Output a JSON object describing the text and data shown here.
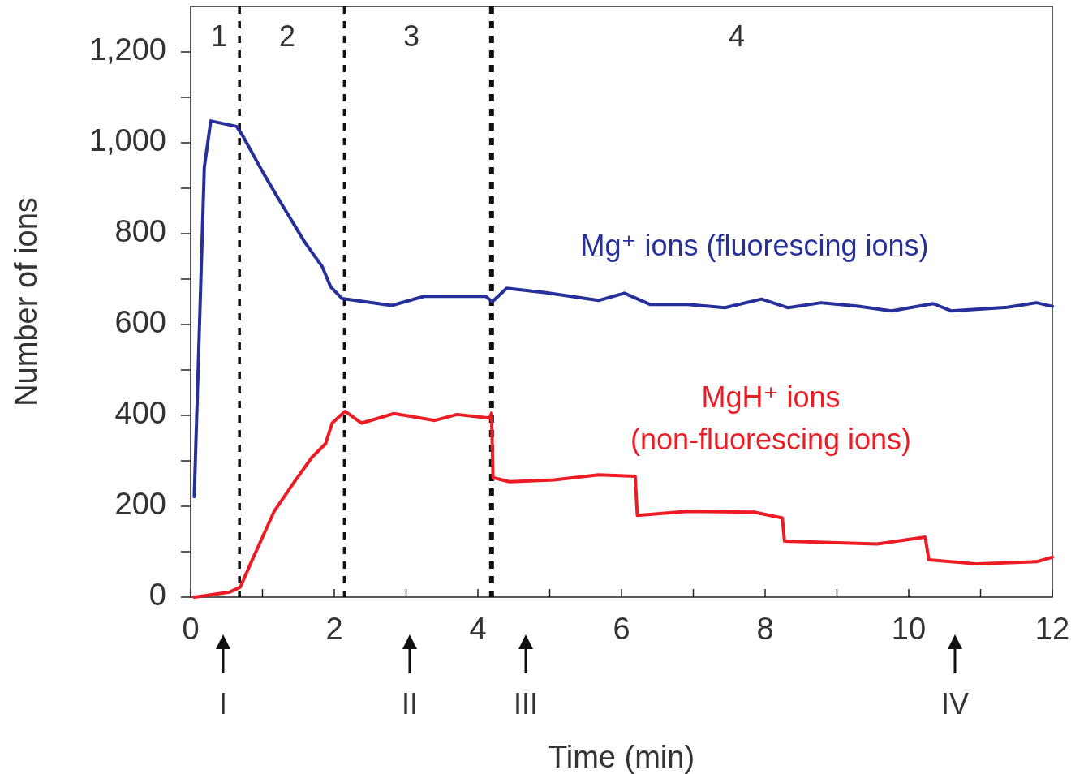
{
  "chart_data": {
    "type": "line",
    "xlabel": "Time (min)",
    "ylabel": "Number of ions",
    "xlim": [
      0,
      12
    ],
    "ylim": [
      0,
      1300
    ],
    "xticks": [
      0,
      {
        "value": 1,
        "label": null
      },
      2,
      {
        "value": 3,
        "label": null
      },
      4,
      {
        "value": 5,
        "label": null
      },
      6,
      {
        "value": 7,
        "label": null
      },
      8,
      {
        "value": 9,
        "label": null
      },
      10,
      {
        "value": 11,
        "label": null
      },
      12
    ],
    "yticks": [
      0,
      {
        "value": 100,
        "label": null
      },
      200,
      {
        "value": 300,
        "label": null
      },
      400,
      {
        "value": 500,
        "label": null
      },
      600,
      {
        "value": 700,
        "label": null
      },
      800,
      {
        "value": 900,
        "label": null
      },
      {
        "value": 1000,
        "label": "1,000"
      },
      {
        "value": 1100,
        "label": null
      },
      {
        "value": 1200,
        "label": "1,200"
      }
    ],
    "grid": false,
    "legend": false,
    "line_style": "solid",
    "series": [
      {
        "name": "Mg⁺ ions (fluorescing ions)",
        "color": "#26309a",
        "x": [
          0.05,
          0.19,
          0.28,
          0.64,
          0.73,
          1.02,
          1.26,
          1.59,
          1.83,
          1.95,
          2.11,
          2.8,
          3.25,
          4.11,
          4.2,
          4.4,
          4.95,
          5.68,
          6.04,
          6.4,
          6.92,
          7.44,
          7.95,
          8.32,
          8.78,
          9.3,
          9.76,
          10.34,
          10.59,
          11.37,
          11.78,
          12
        ],
        "values": [
          221,
          946,
          1048,
          1036,
          1014,
          931,
          867,
          781,
          728,
          683,
          657,
          642,
          662,
          662,
          650,
          680,
          670,
          653,
          669,
          644,
          644,
          637,
          656,
          637,
          648,
          640,
          630,
          646,
          630,
          638,
          648,
          640
        ]
      },
      {
        "name": "MgH⁺ ions (non-fluorescing ions)",
        "color": "#ec1c24",
        "x": [
          0.05,
          0.54,
          0.69,
          0.88,
          1.16,
          1.45,
          1.69,
          1.88,
          1.97,
          2.15,
          2.38,
          2.83,
          3.4,
          3.71,
          4.16,
          4.19,
          4.21,
          4.44,
          5.06,
          5.68,
          6.19,
          6.22,
          6.92,
          7.85,
          8.24,
          8.27,
          9.56,
          10.23,
          10.28,
          10.96,
          11.78,
          12
        ],
        "values": [
          0,
          11,
          22,
          90,
          188,
          255,
          308,
          338,
          383,
          409,
          383,
          404,
          389,
          402,
          394,
          405,
          263,
          254,
          258,
          269,
          266,
          180,
          189,
          187,
          174,
          123,
          117,
          132,
          82,
          73,
          78,
          88
        ]
      }
    ],
    "ref_lines": [
      {
        "axis": "x",
        "value": 0.68,
        "line_style": "dashed",
        "color": "#111111"
      },
      {
        "axis": "x",
        "value": 2.14,
        "line_style": "dashed",
        "color": "#111111"
      },
      {
        "axis": "x",
        "value": 4.19,
        "line_style": "dashed",
        "color": "#111111"
      }
    ],
    "annotations": [
      "1",
      "2",
      "3",
      "4",
      "I",
      "II",
      "III",
      "IV"
    ]
  }
}
